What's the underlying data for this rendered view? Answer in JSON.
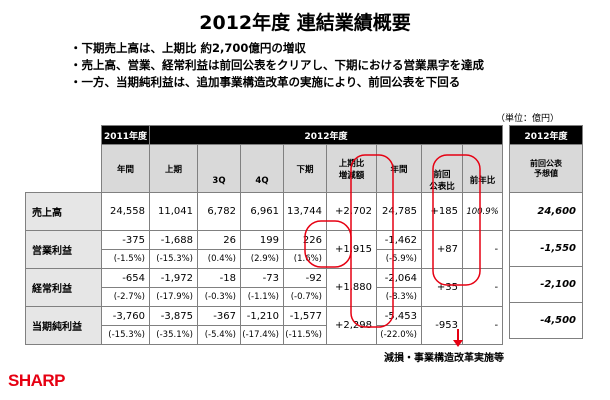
{
  "title": "2012年度 連結業績概要",
  "bullets": [
    "・下期売上高は、上期比 約2,700億円の増収",
    "・売上高、営業、経常利益は前回公表をクリアし、下期における営業黒字を達成",
    "・一方、当期純利益は、追加事業構造改革の実施により、前回公表を下回る"
  ],
  "unit": "（単位：億円）",
  "table": {
    "hdr_fy2011": "2011年度",
    "hdr_fy2012": "2012年度",
    "hdr_annual": "年間",
    "hdr_h1": "上期",
    "hdr_3q": "3Q",
    "hdr_4q": "4Q",
    "hdr_h2": "下期",
    "hdr_h1diff_1": "上期比",
    "hdr_h1diff_2": "増減額",
    "hdr_annual2": "年間",
    "hdr_prev_1": "前回",
    "hdr_prev_2": "公表比",
    "hdr_yoy": "前年比",
    "rows": [
      {
        "label": "売上高",
        "values": [
          "24,558",
          "11,041",
          "6,782",
          "6,961",
          "13,744",
          "+2,702",
          "24,785",
          "+185",
          "100.9%"
        ],
        "ratios": null
      },
      {
        "label": "営業利益",
        "values": [
          "-375",
          "-1,688",
          "26",
          "199",
          "226",
          "+1,915",
          "-1,462",
          "+87",
          "-"
        ],
        "ratios": [
          "(-1.5%)",
          "(-15.3%)",
          "(0.4%)",
          "(2.9%)",
          "(1.6%)",
          "(-5.9%)"
        ]
      },
      {
        "label": "経常利益",
        "values": [
          "-654",
          "-1,972",
          "-18",
          "-73",
          "-92",
          "+1,880",
          "-2,064",
          "+35",
          "-"
        ],
        "ratios": [
          "(-2.7%)",
          "(-17.9%)",
          "(-0.3%)",
          "(-1.1%)",
          "(-0.7%)",
          "(-8.3%)"
        ]
      },
      {
        "label": "当期純利益",
        "values": [
          "-3,760",
          "-3,875",
          "-367",
          "-1,210",
          "-1,577",
          "+2,298",
          "-5,453",
          "-953",
          "-"
        ],
        "ratios": [
          "(-15.3%)",
          "(-35.1%)",
          "(-5.4%)",
          "(-17.4%)",
          "(-11.5%)",
          "(-22.0%)"
        ]
      }
    ]
  },
  "forecast": {
    "header": "2012年度",
    "sub_1": "前回公表",
    "sub_2": "予想値",
    "values": [
      "24,600",
      "-1,550",
      "-2,100",
      "-4,500"
    ]
  },
  "annotation": "減損・事業構造改革実施等",
  "logo": "SHARP",
  "colors": {
    "header_bg": "#000000",
    "subheader_bg": "#d9d9d9",
    "label_bg": "#e6e6e6",
    "highlight": "#e60012"
  }
}
